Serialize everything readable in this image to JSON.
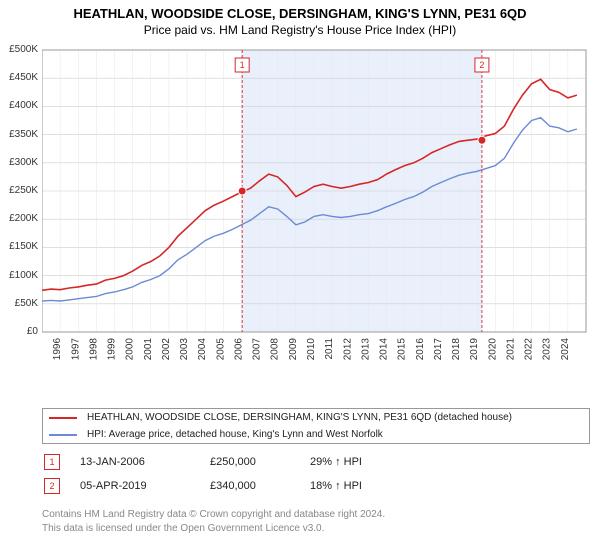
{
  "title": "HEATHLAN, WOODSIDE CLOSE, DERSINGHAM, KING'S LYNN, PE31 6QD",
  "subtitle": "Price paid vs. HM Land Registry's House Price Index (HPI)",
  "chart": {
    "type": "line",
    "background_color": "#ffffff",
    "plot_border_color": "#9a9a9a",
    "grid_color": "#cccccc",
    "minor_grid_color": "#e6e6e6",
    "shaded_region": {
      "x_start": 2006.04,
      "x_end": 2019.26,
      "fill": "#eaf0fb"
    },
    "x": {
      "min": 1995,
      "max": 2025,
      "ticks": [
        1995,
        1996,
        1997,
        1998,
        1999,
        2000,
        2001,
        2002,
        2003,
        2004,
        2005,
        2006,
        2007,
        2008,
        2009,
        2010,
        2011,
        2012,
        2013,
        2014,
        2015,
        2016,
        2017,
        2018,
        2019,
        2020,
        2021,
        2022,
        2023,
        2024
      ],
      "label_fontsize": 10,
      "label_rotation": -90,
      "label_color": "#333333"
    },
    "y": {
      "min": 0,
      "max": 500000,
      "ticks": [
        0,
        50000,
        100000,
        150000,
        200000,
        250000,
        300000,
        350000,
        400000,
        450000,
        500000
      ],
      "tick_labels": [
        "£0",
        "£50K",
        "£100K",
        "£150K",
        "£200K",
        "£250K",
        "£300K",
        "£350K",
        "£400K",
        "£450K",
        "£500K"
      ],
      "label_fontsize": 10,
      "label_color": "#333333"
    },
    "series": [
      {
        "name": "property",
        "label": "HEATHLAN, WOODSIDE CLOSE, DERSINGHAM, KING'S LYNN, PE31 6QD (detached house)",
        "color": "#d62728",
        "line_width": 1.6,
        "x": [
          1995,
          1995.5,
          1996,
          1996.5,
          1997,
          1997.5,
          1998,
          1998.5,
          1999,
          1999.5,
          2000,
          2000.5,
          2001,
          2001.5,
          2002,
          2002.5,
          2003,
          2003.5,
          2004,
          2004.5,
          2005,
          2005.5,
          2006,
          2006.5,
          2007,
          2007.5,
          2008,
          2008.5,
          2009,
          2009.5,
          2010,
          2010.5,
          2011,
          2011.5,
          2012,
          2012.5,
          2013,
          2013.5,
          2014,
          2014.5,
          2015,
          2015.5,
          2016,
          2016.5,
          2017,
          2017.5,
          2018,
          2018.5,
          2019,
          2019.5,
          2020,
          2020.5,
          2021,
          2021.5,
          2022,
          2022.5,
          2023,
          2023.5,
          2024,
          2024.5
        ],
        "y": [
          74000,
          76000,
          75000,
          78000,
          80000,
          83000,
          85000,
          92000,
          95000,
          100000,
          108000,
          118000,
          125000,
          135000,
          150000,
          170000,
          185000,
          200000,
          215000,
          225000,
          232000,
          240000,
          248000,
          255000,
          268000,
          280000,
          275000,
          260000,
          240000,
          248000,
          258000,
          262000,
          258000,
          255000,
          258000,
          262000,
          265000,
          270000,
          280000,
          288000,
          295000,
          300000,
          308000,
          318000,
          325000,
          332000,
          338000,
          340000,
          342000,
          348000,
          352000,
          365000,
          395000,
          420000,
          440000,
          448000,
          430000,
          425000,
          415000,
          420000
        ]
      },
      {
        "name": "hpi",
        "label": "HPI: Average price, detached house, King's Lynn and West Norfolk",
        "color": "#6b8bd6",
        "line_width": 1.4,
        "x": [
          1995,
          1995.5,
          1996,
          1996.5,
          1997,
          1997.5,
          1998,
          1998.5,
          1999,
          1999.5,
          2000,
          2000.5,
          2001,
          2001.5,
          2002,
          2002.5,
          2003,
          2003.5,
          2004,
          2004.5,
          2005,
          2005.5,
          2006,
          2006.5,
          2007,
          2007.5,
          2008,
          2008.5,
          2009,
          2009.5,
          2010,
          2010.5,
          2011,
          2011.5,
          2012,
          2012.5,
          2013,
          2013.5,
          2014,
          2014.5,
          2015,
          2015.5,
          2016,
          2016.5,
          2017,
          2017.5,
          2018,
          2018.5,
          2019,
          2019.5,
          2020,
          2020.5,
          2021,
          2021.5,
          2022,
          2022.5,
          2023,
          2023.5,
          2024,
          2024.5
        ],
        "y": [
          55000,
          56000,
          55000,
          57000,
          59000,
          61000,
          63000,
          68000,
          71000,
          75000,
          80000,
          88000,
          93000,
          100000,
          112000,
          128000,
          138000,
          150000,
          162000,
          170000,
          175000,
          182000,
          190000,
          198000,
          210000,
          222000,
          218000,
          205000,
          190000,
          195000,
          205000,
          208000,
          205000,
          203000,
          205000,
          208000,
          210000,
          215000,
          222000,
          228000,
          235000,
          240000,
          248000,
          258000,
          265000,
          272000,
          278000,
          282000,
          285000,
          290000,
          295000,
          308000,
          335000,
          358000,
          375000,
          380000,
          365000,
          362000,
          355000,
          360000
        ]
      }
    ],
    "markers": [
      {
        "id": "1",
        "x": 2006.04,
        "y": 250000,
        "badge_y_offset": -210,
        "line_color": "#d62728",
        "point_color": "#d62728"
      },
      {
        "id": "2",
        "x": 2019.26,
        "y": 340000,
        "badge_y_offset": -210,
        "line_color": "#d62728",
        "point_color": "#d62728"
      }
    ]
  },
  "legend": {
    "items": [
      {
        "color": "#d62728",
        "label": "HEATHLAN, WOODSIDE CLOSE, DERSINGHAM, KING'S LYNN, PE31 6QD (detached house)"
      },
      {
        "color": "#6b8bd6",
        "label": "HPI: Average price, detached house, King's Lynn and West Norfolk"
      }
    ]
  },
  "transactions": [
    {
      "badge": "1",
      "date": "13-JAN-2006",
      "price": "£250,000",
      "hpi": "29% ↑ HPI"
    },
    {
      "badge": "2",
      "date": "05-APR-2019",
      "price": "£340,000",
      "hpi": "18% ↑ HPI"
    }
  ],
  "footer_line1": "Contains HM Land Registry data © Crown copyright and database right 2024.",
  "footer_line2": "This data is licensed under the Open Government Licence v3.0."
}
